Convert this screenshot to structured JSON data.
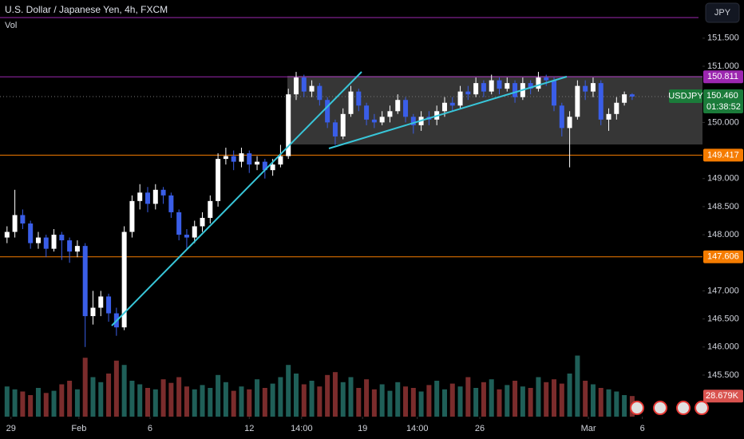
{
  "chart_data": {
    "type": "candlestick",
    "title": "U.S. Dollar / Japanese Yen, 4h, FXCM",
    "volume_title": "Vol",
    "currency_button": "JPY",
    "symbol": "USDJPY",
    "countdown": "01:38:52",
    "up_color": "#ffffff",
    "down_color": "#3a5ee8",
    "volume_up_color": "#1f5f58",
    "volume_down_color": "#7b2c2c",
    "xlim": [
      -0.9,
      89
    ],
    "ylim": [
      144.76,
      152.18
    ],
    "volume_ylim": [
      0,
      100000
    ],
    "xticks": [
      {
        "value": 0.5,
        "label": "29"
      },
      {
        "value": 9.2,
        "label": "Feb"
      },
      {
        "value": 18.3,
        "label": "6"
      },
      {
        "value": 31,
        "label": "12"
      },
      {
        "value": 37.7,
        "label": "14:00"
      },
      {
        "value": 45.5,
        "label": "19"
      },
      {
        "value": 52.5,
        "label": "14:00"
      },
      {
        "value": 60.5,
        "label": "26"
      },
      {
        "value": 74.4,
        "label": "Mar"
      },
      {
        "value": 81.3,
        "label": "6"
      }
    ],
    "yticks": [
      {
        "value": 151.5,
        "label": "151.500"
      },
      {
        "value": 151,
        "label": "151.000"
      },
      {
        "value": 150,
        "label": "150.000"
      },
      {
        "value": 149,
        "label": "149.000"
      },
      {
        "value": 148.5,
        "label": "148.500"
      },
      {
        "value": 148,
        "label": "148.000"
      },
      {
        "value": 147,
        "label": "147.000"
      },
      {
        "value": 146.5,
        "label": "146.500"
      },
      {
        "value": 146,
        "label": "146.000"
      },
      {
        "value": 145.5,
        "label": "145.500"
      }
    ],
    "levels": [
      {
        "value": 150.811,
        "color": "#9c27b0"
      },
      {
        "value": 149.417,
        "color": "#f57c00"
      },
      {
        "value": 147.606,
        "color": "#f57c00"
      }
    ],
    "last_price": {
      "value": 150.46,
      "label": "150.460"
    },
    "volume_last_label": "28.679K",
    "ohlc": [
      [
        147.95,
        148.15,
        147.85,
        148.05
      ],
      [
        148.05,
        148.8,
        147.95,
        148.35
      ],
      [
        148.35,
        148.45,
        148.1,
        148.2
      ],
      [
        148.2,
        148.25,
        147.75,
        147.85
      ],
      [
        147.85,
        148.05,
        147.75,
        147.95
      ],
      [
        147.95,
        148.0,
        147.6,
        147.75
      ],
      [
        147.75,
        148.1,
        147.7,
        148.0
      ],
      [
        148.0,
        148.05,
        147.55,
        147.9
      ],
      [
        147.9,
        147.95,
        147.5,
        147.7
      ],
      [
        147.7,
        147.9,
        147.6,
        147.8
      ],
      [
        147.8,
        147.85,
        146.0,
        146.55
      ],
      [
        146.55,
        147.0,
        146.4,
        146.7
      ],
      [
        146.7,
        147.0,
        146.55,
        146.9
      ],
      [
        146.9,
        146.95,
        146.45,
        146.6
      ],
      [
        146.6,
        146.7,
        146.2,
        146.35
      ],
      [
        146.35,
        148.15,
        146.3,
        148.05
      ],
      [
        148.05,
        148.7,
        147.95,
        148.6
      ],
      [
        148.6,
        148.9,
        148.45,
        148.75
      ],
      [
        148.75,
        148.85,
        148.4,
        148.55
      ],
      [
        148.55,
        148.9,
        148.45,
        148.8
      ],
      [
        148.8,
        148.85,
        148.55,
        148.7
      ],
      [
        148.7,
        148.75,
        148.3,
        148.4
      ],
      [
        148.4,
        148.45,
        147.9,
        148.0
      ],
      [
        148.0,
        148.1,
        147.75,
        147.95
      ],
      [
        147.95,
        148.25,
        147.85,
        148.15
      ],
      [
        148.15,
        148.4,
        148.05,
        148.3
      ],
      [
        148.3,
        148.7,
        148.2,
        148.6
      ],
      [
        148.6,
        149.45,
        148.5,
        149.35
      ],
      [
        149.35,
        149.55,
        149.25,
        149.4
      ],
      [
        149.4,
        149.5,
        149.15,
        149.3
      ],
      [
        149.3,
        149.55,
        149.2,
        149.45
      ],
      [
        149.45,
        149.5,
        149.1,
        149.25
      ],
      [
        149.25,
        149.4,
        149.15,
        149.3
      ],
      [
        149.3,
        149.35,
        149.0,
        149.15
      ],
      [
        149.15,
        149.35,
        149.05,
        149.25
      ],
      [
        149.25,
        149.6,
        149.2,
        149.4
      ],
      [
        149.4,
        150.6,
        149.35,
        150.5
      ],
      [
        150.5,
        150.9,
        150.4,
        150.8
      ],
      [
        150.8,
        150.85,
        150.45,
        150.55
      ],
      [
        150.55,
        150.75,
        150.45,
        150.65
      ],
      [
        150.65,
        150.7,
        150.3,
        150.4
      ],
      [
        150.4,
        150.45,
        149.9,
        150.0
      ],
      [
        150.0,
        150.05,
        149.6,
        149.75
      ],
      [
        149.75,
        150.25,
        149.7,
        150.15
      ],
      [
        150.15,
        150.65,
        150.1,
        150.55
      ],
      [
        150.55,
        150.6,
        150.2,
        150.3
      ],
      [
        150.3,
        150.35,
        149.95,
        150.05
      ],
      [
        150.05,
        150.15,
        149.9,
        150.0
      ],
      [
        150.0,
        150.2,
        149.95,
        150.1
      ],
      [
        150.1,
        150.3,
        150.0,
        150.2
      ],
      [
        150.2,
        150.5,
        150.15,
        150.4
      ],
      [
        150.4,
        150.45,
        150.0,
        150.1
      ],
      [
        150.1,
        150.15,
        149.8,
        149.95
      ],
      [
        149.95,
        150.2,
        149.85,
        150.1
      ],
      [
        150.1,
        150.2,
        149.95,
        150.05
      ],
      [
        150.05,
        150.3,
        149.95,
        150.2
      ],
      [
        150.2,
        150.45,
        150.1,
        150.35
      ],
      [
        150.35,
        150.45,
        150.2,
        150.3
      ],
      [
        150.3,
        150.65,
        150.25,
        150.55
      ],
      [
        150.55,
        150.65,
        150.4,
        150.5
      ],
      [
        150.5,
        150.8,
        150.45,
        150.7
      ],
      [
        150.7,
        150.75,
        150.45,
        150.55
      ],
      [
        150.55,
        150.85,
        150.5,
        150.75
      ],
      [
        150.75,
        150.8,
        150.5,
        150.6
      ],
      [
        150.6,
        150.8,
        150.55,
        150.7
      ],
      [
        150.7,
        150.75,
        150.35,
        150.45
      ],
      [
        150.45,
        150.8,
        150.4,
        150.7
      ],
      [
        150.7,
        150.75,
        150.5,
        150.6
      ],
      [
        150.6,
        150.9,
        150.55,
        150.8
      ],
      [
        150.8,
        150.85,
        150.65,
        150.75
      ],
      [
        150.75,
        150.8,
        150.2,
        150.3
      ],
      [
        150.3,
        150.35,
        149.75,
        149.9
      ],
      [
        149.9,
        150.2,
        149.2,
        150.1
      ],
      [
        150.1,
        150.75,
        150.05,
        150.65
      ],
      [
        150.65,
        150.75,
        150.4,
        150.55
      ],
      [
        150.55,
        150.8,
        150.45,
        150.7
      ],
      [
        150.7,
        150.75,
        149.95,
        150.05
      ],
      [
        150.05,
        150.25,
        149.85,
        150.15
      ],
      [
        150.15,
        150.45,
        150.05,
        150.35
      ],
      [
        150.35,
        150.55,
        150.3,
        150.5
      ],
      [
        150.5,
        150.52,
        150.4,
        150.46
      ]
    ],
    "volume": [
      42000,
      38000,
      35000,
      30000,
      40000,
      33000,
      36000,
      45000,
      50000,
      38000,
      82000,
      55000,
      48000,
      60000,
      78000,
      72000,
      50000,
      45000,
      40000,
      38000,
      52000,
      47000,
      55000,
      42000,
      38000,
      44000,
      40000,
      58000,
      48000,
      36000,
      42000,
      38000,
      52000,
      40000,
      46000,
      55000,
      72000,
      60000,
      45000,
      50000,
      42000,
      58000,
      62000,
      48000,
      55000,
      40000,
      52000,
      38000,
      45000,
      36000,
      48000,
      42000,
      40000,
      35000,
      44000,
      50000,
      38000,
      46000,
      42000,
      55000,
      40000,
      48000,
      52000,
      38000,
      44000,
      50000,
      42000,
      40000,
      55000,
      48000,
      52000,
      46000,
      60000,
      85000,
      50000,
      45000,
      40000,
      38000,
      35000,
      30000,
      28679
    ]
  }
}
